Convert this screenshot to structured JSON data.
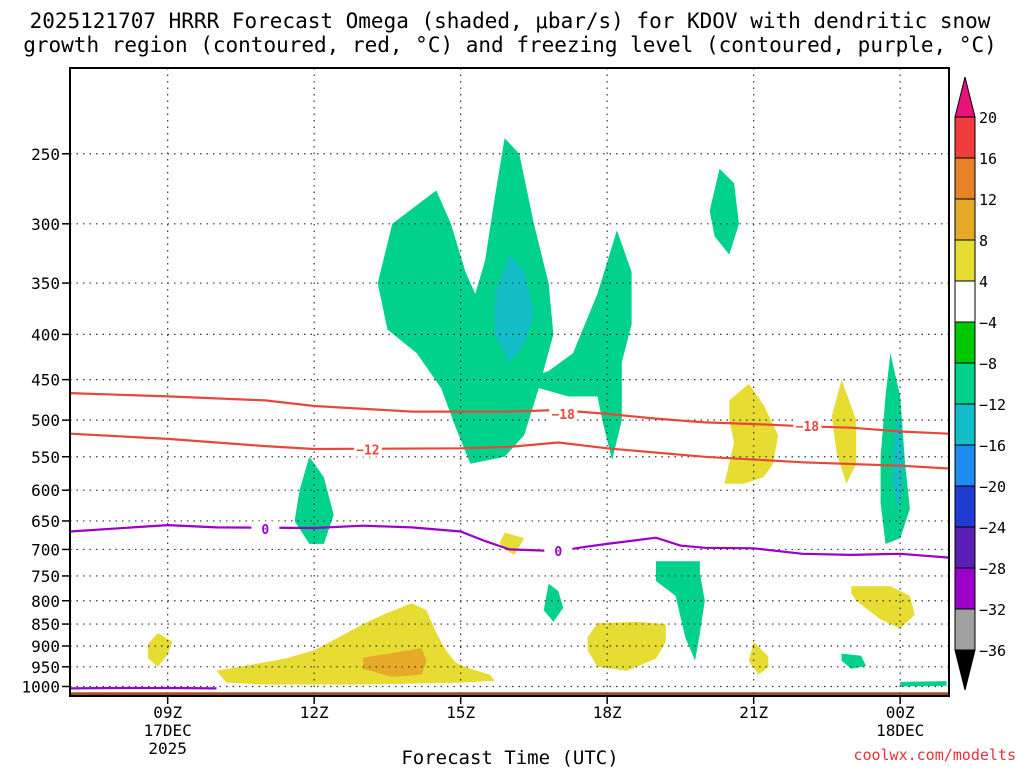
{
  "title_line1": "2025121707 HRRR Forecast Omega (shaded, μbar/s) for KDOV with dendritic snow",
  "title_line2": "growth region (contoured, red, °C) and freezing level (contoured, purple, °C)",
  "credit": "coolwx.com/modelts",
  "chart_data": {
    "type": "heatmap",
    "title": "2025121707 HRRR Forecast Omega (shaded, μbar/s) for KDOV with dendritic snow growth region (contoured, red, °C) and freezing level (contoured, purple, °C)",
    "xlabel": "Forecast Time (UTC)",
    "ylabel": "",
    "x_range_hours": [
      7,
      25
    ],
    "x_ticks": [
      {
        "h": 9,
        "lines": [
          "09Z",
          "17DEC",
          "2025"
        ]
      },
      {
        "h": 12,
        "lines": [
          "12Z"
        ]
      },
      {
        "h": 15,
        "lines": [
          "15Z"
        ]
      },
      {
        "h": 18,
        "lines": [
          "18Z"
        ]
      },
      {
        "h": 21,
        "lines": [
          "21Z"
        ]
      },
      {
        "h": 24,
        "lines": [
          "00Z",
          "18DEC"
        ]
      }
    ],
    "y_range_hpa": [
      1025,
      200
    ],
    "y_ticks": [
      250,
      300,
      350,
      400,
      450,
      500,
      550,
      600,
      650,
      700,
      750,
      800,
      850,
      900,
      950,
      1000
    ],
    "colorbar_levels": [
      -36,
      -32,
      -28,
      -24,
      -20,
      -16,
      -12,
      -8,
      -4,
      4,
      8,
      12,
      16,
      20
    ],
    "colorbar_colors": [
      "#000000",
      "#a0a0a0",
      "#9a00c8",
      "#5a1eb4",
      "#1e3cd2",
      "#1e8cf0",
      "#14bec8",
      "#00d28c",
      "#00c800",
      "#ffffff",
      "#e6dc32",
      "#e6aa28",
      "#e68228",
      "#f03c3c",
      "#e6147a"
    ],
    "omega_regions": [
      {
        "level": -8,
        "points": [
          [
            11.9,
            550
          ],
          [
            12.2,
            580
          ],
          [
            12.4,
            640
          ],
          [
            12.2,
            690
          ],
          [
            11.9,
            690
          ],
          [
            11.6,
            650
          ],
          [
            11.7,
            600
          ]
        ]
      },
      {
        "level": -8,
        "points": [
          [
            14.5,
            275
          ],
          [
            14.8,
            300
          ],
          [
            15.1,
            340
          ],
          [
            15.3,
            360
          ],
          [
            15.5,
            330
          ],
          [
            15.7,
            280
          ],
          [
            15.9,
            240
          ],
          [
            16.2,
            250
          ],
          [
            16.5,
            300
          ],
          [
            16.8,
            350
          ],
          [
            16.9,
            400
          ],
          [
            16.6,
            460
          ],
          [
            16.3,
            520
          ],
          [
            15.9,
            550
          ],
          [
            15.2,
            560
          ],
          [
            14.9,
            510
          ],
          [
            14.6,
            460
          ],
          [
            14.1,
            420
          ],
          [
            13.5,
            395
          ],
          [
            13.3,
            350
          ],
          [
            13.6,
            300
          ]
        ]
      },
      {
        "level": -12,
        "points": [
          [
            16.0,
            325
          ],
          [
            16.3,
            340
          ],
          [
            16.5,
            380
          ],
          [
            16.3,
            410
          ],
          [
            16.0,
            430
          ],
          [
            15.7,
            400
          ],
          [
            15.7,
            360
          ]
        ]
      },
      {
        "level": -8,
        "points": [
          [
            16.3,
            450
          ],
          [
            16.8,
            440
          ],
          [
            17.3,
            420
          ],
          [
            17.8,
            360
          ],
          [
            18.2,
            305
          ],
          [
            18.5,
            340
          ],
          [
            18.5,
            390
          ],
          [
            18.3,
            430
          ],
          [
            18.3,
            500
          ],
          [
            18.1,
            555
          ],
          [
            17.9,
            500
          ],
          [
            17.8,
            470
          ],
          [
            17.2,
            470
          ],
          [
            16.6,
            460
          ]
        ]
      },
      {
        "level": -8,
        "points": [
          [
            20.3,
            260
          ],
          [
            20.6,
            270
          ],
          [
            20.7,
            300
          ],
          [
            20.5,
            325
          ],
          [
            20.2,
            310
          ],
          [
            20.1,
            290
          ]
        ]
      },
      {
        "level": -8,
        "points": [
          [
            16.8,
            765
          ],
          [
            17.0,
            780
          ],
          [
            17.1,
            815
          ],
          [
            16.9,
            845
          ],
          [
            16.7,
            820
          ]
        ]
      },
      {
        "level": -8,
        "points": [
          [
            19.0,
            722
          ],
          [
            19.9,
            722
          ],
          [
            19.9,
            745
          ],
          [
            20.0,
            800
          ],
          [
            19.9,
            870
          ],
          [
            19.8,
            935
          ],
          [
            19.6,
            880
          ],
          [
            19.4,
            790
          ],
          [
            19.0,
            760
          ]
        ]
      },
      {
        "level": -8,
        "points": [
          [
            23.8,
            420
          ],
          [
            24.0,
            470
          ],
          [
            24.1,
            560
          ],
          [
            24.2,
            630
          ],
          [
            24.0,
            680
          ],
          [
            23.7,
            690
          ],
          [
            23.6,
            620
          ],
          [
            23.6,
            550
          ],
          [
            23.7,
            470
          ]
        ]
      },
      {
        "level": -12,
        "points": [
          [
            23.97,
            490
          ],
          [
            24.05,
            540
          ],
          [
            24.05,
            600
          ],
          [
            23.95,
            630
          ],
          [
            23.85,
            590
          ],
          [
            23.88,
            520
          ]
        ]
      },
      {
        "level": -8,
        "points": [
          [
            22.8,
            918
          ],
          [
            23.2,
            923
          ],
          [
            23.3,
            948
          ],
          [
            23.0,
            955
          ],
          [
            22.8,
            935
          ]
        ]
      },
      {
        "level": -8,
        "points": [
          [
            24.0,
            988
          ],
          [
            24.95,
            986
          ],
          [
            24.95,
            998
          ],
          [
            24.0,
            1000
          ]
        ]
      },
      {
        "level": 4,
        "points": [
          [
            8.8,
            870
          ],
          [
            9.1,
            890
          ],
          [
            9.0,
            920
          ],
          [
            8.8,
            950
          ],
          [
            8.6,
            930
          ],
          [
            8.6,
            895
          ]
        ]
      },
      {
        "level": 4,
        "points": [
          [
            10.0,
            960
          ],
          [
            10.7,
            945
          ],
          [
            11.4,
            930
          ],
          [
            12.0,
            910
          ],
          [
            12.5,
            880
          ],
          [
            13.0,
            850
          ],
          [
            13.4,
            830
          ],
          [
            14.0,
            805
          ],
          [
            14.3,
            820
          ],
          [
            14.5,
            870
          ],
          [
            14.7,
            910
          ],
          [
            14.9,
            940
          ],
          [
            15.2,
            955
          ],
          [
            15.6,
            970
          ],
          [
            15.7,
            985
          ],
          [
            15.0,
            990
          ],
          [
            13.0,
            995
          ],
          [
            11.0,
            995
          ],
          [
            10.2,
            990
          ]
        ]
      },
      {
        "level": 8,
        "points": [
          [
            13.0,
            928
          ],
          [
            14.2,
            905
          ],
          [
            14.3,
            935
          ],
          [
            14.2,
            970
          ],
          [
            13.6,
            975
          ],
          [
            13.0,
            955
          ]
        ]
      },
      {
        "level": 4,
        "points": [
          [
            15.9,
            670
          ],
          [
            16.3,
            680
          ],
          [
            16.1,
            710
          ],
          [
            15.9,
            700
          ],
          [
            15.8,
            688
          ]
        ]
      },
      {
        "level": 4,
        "points": [
          [
            17.8,
            848
          ],
          [
            18.6,
            845
          ],
          [
            19.2,
            850
          ],
          [
            19.2,
            890
          ],
          [
            19.0,
            930
          ],
          [
            18.4,
            960
          ],
          [
            17.8,
            950
          ],
          [
            17.6,
            910
          ],
          [
            17.6,
            880
          ]
        ]
      },
      {
        "level": 4,
        "points": [
          [
            20.5,
            475
          ],
          [
            20.9,
            455
          ],
          [
            21.2,
            480
          ],
          [
            21.5,
            520
          ],
          [
            21.4,
            560
          ],
          [
            21.2,
            580
          ],
          [
            20.8,
            590
          ],
          [
            20.4,
            590
          ],
          [
            20.6,
            530
          ],
          [
            20.5,
            500
          ]
        ]
      },
      {
        "level": 4,
        "points": [
          [
            21.0,
            890
          ],
          [
            21.3,
            925
          ],
          [
            21.3,
            950
          ],
          [
            21.1,
            970
          ],
          [
            20.9,
            935
          ]
        ]
      },
      {
        "level": 4,
        "points": [
          [
            22.8,
            450
          ],
          [
            23.1,
            500
          ],
          [
            23.1,
            560
          ],
          [
            22.9,
            590
          ],
          [
            22.7,
            545
          ],
          [
            22.6,
            495
          ]
        ]
      },
      {
        "level": 4,
        "points": [
          [
            23.0,
            770
          ],
          [
            23.8,
            770
          ],
          [
            24.2,
            790
          ],
          [
            24.3,
            830
          ],
          [
            24.0,
            860
          ],
          [
            23.6,
            840
          ],
          [
            23.1,
            800
          ],
          [
            23.0,
            785
          ]
        ]
      }
    ],
    "contours": [
      {
        "name": "dgz -12C",
        "color": "#e8483c",
        "label": "-12",
        "label_at": [
          13.1,
          540
        ],
        "points": [
          [
            7,
            518
          ],
          [
            9,
            525
          ],
          [
            11,
            535
          ],
          [
            12,
            539
          ],
          [
            15,
            538
          ],
          [
            16,
            536
          ],
          [
            17,
            530
          ],
          [
            18,
            538
          ],
          [
            20,
            550
          ],
          [
            22,
            558
          ],
          [
            24,
            563
          ],
          [
            25,
            567
          ]
        ]
      },
      {
        "name": "dgz -18C",
        "color": "#e8483c",
        "label": "-18",
        "label_at": [
          17.1,
          492
        ],
        "points": [
          [
            7,
            466
          ],
          [
            9,
            470
          ],
          [
            11,
            475
          ],
          [
            12,
            482
          ],
          [
            14,
            489
          ],
          [
            16,
            489
          ],
          [
            17,
            487
          ],
          [
            18,
            492
          ],
          [
            19,
            498
          ],
          [
            20,
            503
          ],
          [
            21,
            505
          ],
          [
            22,
            508
          ],
          [
            23,
            510
          ],
          [
            24,
            515
          ],
          [
            25,
            518
          ]
        ]
      },
      {
        "name": "dgz -18C (right)",
        "color": "#e8483c",
        "label": "-18",
        "label_at": [
          22.1,
          508
        ],
        "points": []
      },
      {
        "name": "freezing level 0C",
        "color": "#9a00c8",
        "label": "0",
        "label_at": [
          11.0,
          664
        ],
        "points": [
          [
            7,
            668
          ],
          [
            9,
            657
          ],
          [
            10,
            661
          ],
          [
            12,
            662
          ],
          [
            13,
            658
          ],
          [
            14,
            661
          ],
          [
            15,
            668
          ],
          [
            15.5,
            685
          ],
          [
            16,
            700
          ],
          [
            17,
            703
          ],
          [
            17.5,
            696
          ],
          [
            18,
            690
          ],
          [
            19,
            679
          ],
          [
            19.5,
            693
          ],
          [
            20,
            697
          ],
          [
            21,
            698
          ],
          [
            22,
            708
          ],
          [
            23,
            710
          ],
          [
            24,
            708
          ],
          [
            25,
            715
          ]
        ]
      },
      {
        "name": "freezing level 0C label 2",
        "color": "#9a00c8",
        "label": "0",
        "label_at": [
          17.0,
          703
        ],
        "points": []
      },
      {
        "name": "freezing level 0C near surface",
        "color": "#9a00c8",
        "label": "",
        "label_at": null,
        "points": [
          [
            7,
            1005
          ],
          [
            8,
            1004
          ],
          [
            9,
            1004
          ],
          [
            10,
            1005
          ]
        ]
      }
    ],
    "surface_level_hpa": 1015
  }
}
